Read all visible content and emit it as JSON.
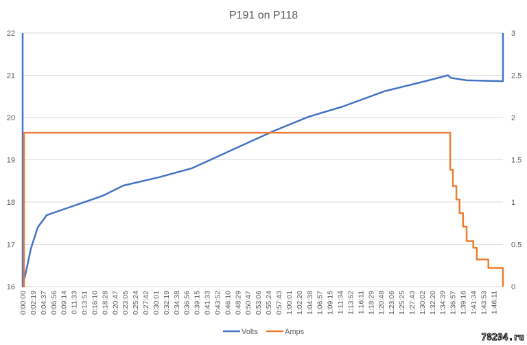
{
  "chart_data": {
    "type": "line",
    "title": "P191 on P118",
    "xlabel": "",
    "ylabel": "",
    "y2label": "",
    "ylim": [
      16,
      22
    ],
    "y_ticks": [
      16,
      17,
      18,
      19,
      20,
      21,
      22
    ],
    "y2lim": [
      0,
      3
    ],
    "y2_ticks": [
      "0",
      "0.5",
      "1",
      "1.5",
      "2",
      "2.5",
      "3"
    ],
    "xlim_minutes": [
      0,
      108.3
    ],
    "x_tick_labels": [
      "0:00:00",
      "0:02:19",
      "0:04:37",
      "0:06:56",
      "0:09:14",
      "0:11:33",
      "0:13:51",
      "0:16:10",
      "0:18:28",
      "0:20:47",
      "0:23:05",
      "0:25:24",
      "0:27:42",
      "0:30:01",
      "0:32:19",
      "0:34:38",
      "0:36:56",
      "0:39:15",
      "0:41:33",
      "0:43:52",
      "0:46:10",
      "0:48:29",
      "0:50:47",
      "0:53:06",
      "0:55:24",
      "0:57:43",
      "1:00:01",
      "1:02:20",
      "1:04:38",
      "1:06:57",
      "1:09:15",
      "1:11:34",
      "1:13:52",
      "1:16:11",
      "1:18:29",
      "1:20:48",
      "1:23:06",
      "1:25:25",
      "1:27:43",
      "1:30:02",
      "1:32:20",
      "1:34:39",
      "1:36:57",
      "1:39:16",
      "1:41:34",
      "1:43:53",
      "1:46:11"
    ],
    "x_tick_step_seconds": 138.5,
    "grid": true,
    "legend": "bottom",
    "series": [
      {
        "name": "Volts",
        "axis": "left",
        "color": "#4472C4",
        "x": [
          0,
          0,
          0.77,
          1.86,
          3.4,
          5.41,
          10.37,
          18.1,
          22.7,
          30.5,
          38.2,
          45.9,
          56.8,
          64.5,
          72.2,
          81.5,
          90.8,
          95.9,
          96.5,
          100.1,
          108.3,
          108.3
        ],
        "y": [
          22,
          16,
          16.36,
          16.9,
          17.4,
          17.69,
          17.87,
          18.15,
          18.39,
          18.58,
          18.8,
          19.17,
          19.69,
          20.02,
          20.26,
          20.62,
          20.86,
          21.0,
          20.94,
          20.88,
          20.86,
          22
        ]
      },
      {
        "name": "Amps",
        "axis": "right",
        "color": "#ED7D31",
        "x": [
          0,
          0.31,
          96.2,
          96.4,
          97.0,
          97.8,
          98.5,
          99.3,
          100.1,
          101.6,
          102.4,
          104.7,
          105.0,
          108.3,
          108.3
        ],
        "y": [
          0,
          1.82,
          1.82,
          1.38,
          1.19,
          1.03,
          0.87,
          0.71,
          0.54,
          0.46,
          0.32,
          0.32,
          0.22,
          0.22,
          0
        ]
      }
    ]
  },
  "watermark": "78294.ru"
}
